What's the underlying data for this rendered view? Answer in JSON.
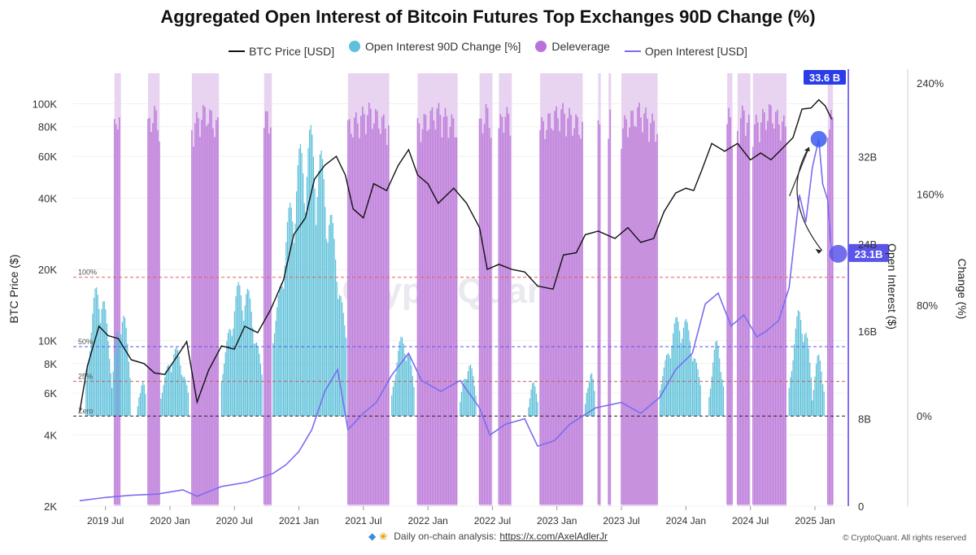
{
  "chart_data": {
    "type": "line",
    "title": "Aggregated Open Interest of Bitcoin Futures Top Exchanges 90D Change (%)",
    "watermark": "CryptoQuant",
    "legend_placement": "top-center",
    "legend": [
      {
        "label": "BTC Price [USD]",
        "kind": "line",
        "color": "#111111"
      },
      {
        "label": "Open Interest 90D Change [%]",
        "kind": "dot",
        "color": "#5ec0da"
      },
      {
        "label": "Deleverage",
        "kind": "dot",
        "color": "#b872d8"
      },
      {
        "label": "Open Interest [USD]",
        "kind": "line",
        "color": "#7b6cf0"
      }
    ],
    "y_left": {
      "label": "BTC Price ($)",
      "scale": "log",
      "range": [
        2000,
        140000
      ],
      "ticks": [
        "100K",
        "80K",
        "60K",
        "40K",
        "20K",
        "10K",
        "8K",
        "6K",
        "4K",
        "2K"
      ]
    },
    "y_oi": {
      "label": "Open Interest ($)",
      "range": [
        0,
        40
      ],
      "ticks": [
        "32B",
        "24B",
        "16B",
        "8B",
        "0"
      ]
    },
    "y_right": {
      "label": "Change (%)",
      "range": [
        -65,
        250
      ],
      "ticks": [
        "240%",
        "160%",
        "80%",
        "0%"
      ]
    },
    "x_ticks": [
      "2019 Jul",
      "2020 Jan",
      "2020 Jul",
      "2021 Jan",
      "2021 Jul",
      "2022 Jan",
      "2022 Jul",
      "2023 Jan",
      "2023 Jul",
      "2024 Jan",
      "2024 Jul",
      "2025 Jan"
    ],
    "reference_lines": [
      {
        "label": "100%",
        "value": 100,
        "color": "#e06060"
      },
      {
        "label": "50%",
        "value": 50,
        "color": "#5a5ae0"
      },
      {
        "label": "25%",
        "value": 25,
        "color": "#c06060"
      },
      {
        "label": "Zero",
        "value": 0,
        "color": "#222222"
      }
    ],
    "btc_price": {
      "name": "BTC Price [USD]",
      "points": [
        [
          2019.3,
          5000
        ],
        [
          2019.36,
          7800
        ],
        [
          2019.45,
          11500
        ],
        [
          2019.52,
          10500
        ],
        [
          2019.6,
          10200
        ],
        [
          2019.7,
          8300
        ],
        [
          2019.8,
          8000
        ],
        [
          2019.88,
          7300
        ],
        [
          2019.96,
          7200
        ],
        [
          2020.05,
          8500
        ],
        [
          2020.13,
          9900
        ],
        [
          2020.21,
          5500
        ],
        [
          2020.3,
          7500
        ],
        [
          2020.4,
          9500
        ],
        [
          2020.5,
          9200
        ],
        [
          2020.58,
          11500
        ],
        [
          2020.68,
          10800
        ],
        [
          2020.78,
          13500
        ],
        [
          2020.88,
          18000
        ],
        [
          2020.96,
          28000
        ],
        [
          2021.05,
          33000
        ],
        [
          2021.12,
          48000
        ],
        [
          2021.2,
          55000
        ],
        [
          2021.29,
          60000
        ],
        [
          2021.36,
          50000
        ],
        [
          2021.42,
          36000
        ],
        [
          2021.5,
          33000
        ],
        [
          2021.58,
          46000
        ],
        [
          2021.68,
          43000
        ],
        [
          2021.77,
          55000
        ],
        [
          2021.85,
          64000
        ],
        [
          2021.92,
          50000
        ],
        [
          2022.0,
          46000
        ],
        [
          2022.08,
          38000
        ],
        [
          2022.2,
          44000
        ],
        [
          2022.3,
          38000
        ],
        [
          2022.4,
          30000
        ],
        [
          2022.46,
          20000
        ],
        [
          2022.55,
          21000
        ],
        [
          2022.65,
          20000
        ],
        [
          2022.75,
          19500
        ],
        [
          2022.85,
          17000
        ],
        [
          2022.97,
          16500
        ],
        [
          2023.05,
          23000
        ],
        [
          2023.15,
          23500
        ],
        [
          2023.22,
          28000
        ],
        [
          2023.32,
          29000
        ],
        [
          2023.45,
          27000
        ],
        [
          2023.55,
          30000
        ],
        [
          2023.65,
          26000
        ],
        [
          2023.75,
          27000
        ],
        [
          2023.83,
          35000
        ],
        [
          2023.92,
          42000
        ],
        [
          2024.0,
          44000
        ],
        [
          2024.06,
          43000
        ],
        [
          2024.12,
          52000
        ],
        [
          2024.2,
          68000
        ],
        [
          2024.3,
          63000
        ],
        [
          2024.4,
          68000
        ],
        [
          2024.5,
          58000
        ],
        [
          2024.58,
          62000
        ],
        [
          2024.66,
          58000
        ],
        [
          2024.75,
          65000
        ],
        [
          2024.83,
          72000
        ],
        [
          2024.9,
          95000
        ],
        [
          2024.97,
          96000
        ],
        [
          2025.03,
          104000
        ],
        [
          2025.08,
          98000
        ],
        [
          2025.13,
          86000
        ]
      ]
    },
    "open_interest": {
      "name": "Open Interest [USD]",
      "points": [
        [
          2019.3,
          0.5
        ],
        [
          2019.5,
          0.8
        ],
        [
          2019.7,
          1.0
        ],
        [
          2019.9,
          1.1
        ],
        [
          2020.1,
          1.5
        ],
        [
          2020.21,
          0.9
        ],
        [
          2020.4,
          1.8
        ],
        [
          2020.6,
          2.2
        ],
        [
          2020.8,
          3.0
        ],
        [
          2020.9,
          3.8
        ],
        [
          2021.0,
          5.0
        ],
        [
          2021.1,
          7.0
        ],
        [
          2021.2,
          10.5
        ],
        [
          2021.3,
          12.5
        ],
        [
          2021.38,
          7.0
        ],
        [
          2021.5,
          8.5
        ],
        [
          2021.6,
          9.5
        ],
        [
          2021.72,
          12.0
        ],
        [
          2021.85,
          14.0
        ],
        [
          2021.95,
          11.5
        ],
        [
          2022.1,
          10.5
        ],
        [
          2022.25,
          11.5
        ],
        [
          2022.4,
          9.0
        ],
        [
          2022.48,
          6.5
        ],
        [
          2022.6,
          7.5
        ],
        [
          2022.75,
          8.0
        ],
        [
          2022.85,
          5.5
        ],
        [
          2022.98,
          6.0
        ],
        [
          2023.1,
          7.5
        ],
        [
          2023.3,
          9.0
        ],
        [
          2023.5,
          9.5
        ],
        [
          2023.65,
          8.5
        ],
        [
          2023.8,
          10.0
        ],
        [
          2023.92,
          12.5
        ],
        [
          2024.05,
          14.0
        ],
        [
          2024.15,
          18.5
        ],
        [
          2024.25,
          19.5
        ],
        [
          2024.35,
          16.5
        ],
        [
          2024.45,
          17.5
        ],
        [
          2024.55,
          15.5
        ],
        [
          2024.62,
          16.0
        ],
        [
          2024.72,
          17.0
        ],
        [
          2024.8,
          20.0
        ],
        [
          2024.88,
          28.5
        ],
        [
          2024.93,
          26.0
        ],
        [
          2024.98,
          31.0
        ],
        [
          2025.03,
          33.6
        ],
        [
          2025.06,
          29.5
        ],
        [
          2025.1,
          28.0
        ],
        [
          2025.13,
          23.1
        ]
      ]
    },
    "oi_90d_change": {
      "name": "Open Interest 90D Change [%]",
      "segments": [
        {
          "from": 2019.35,
          "to": 2019.55,
          "peak": 100
        },
        {
          "from": 2019.55,
          "to": 2019.7,
          "peak": 80
        },
        {
          "from": 2019.75,
          "to": 2019.82,
          "peak": 28
        },
        {
          "from": 2019.93,
          "to": 2020.15,
          "peak": 50
        },
        {
          "from": 2020.4,
          "to": 2020.72,
          "peak": 100
        },
        {
          "from": 2020.8,
          "to": 2021.37,
          "peak": 210
        },
        {
          "from": 2021.72,
          "to": 2021.9,
          "peak": 60
        },
        {
          "from": 2022.25,
          "to": 2022.38,
          "peak": 40
        },
        {
          "from": 2022.78,
          "to": 2022.86,
          "peak": 25
        },
        {
          "from": 2023.22,
          "to": 2023.3,
          "peak": 35
        },
        {
          "from": 2023.8,
          "to": 2024.12,
          "peak": 75
        },
        {
          "from": 2024.18,
          "to": 2024.3,
          "peak": 55
        },
        {
          "from": 2024.8,
          "to": 2024.98,
          "peak": 80
        },
        {
          "from": 2024.98,
          "to": 2025.08,
          "peak": 45
        }
      ]
    },
    "deleverage": {
      "name": "Deleverage",
      "segments": [
        {
          "from": 2019.57,
          "to": 2019.62
        },
        {
          "from": 2019.83,
          "to": 2019.92
        },
        {
          "from": 2020.17,
          "to": 2020.38
        },
        {
          "from": 2020.73,
          "to": 2020.79
        },
        {
          "from": 2021.38,
          "to": 2021.7
        },
        {
          "from": 2021.92,
          "to": 2022.23
        },
        {
          "from": 2022.4,
          "to": 2022.5
        },
        {
          "from": 2022.55,
          "to": 2022.65
        },
        {
          "from": 2022.87,
          "to": 2023.2
        },
        {
          "from": 2023.32,
          "to": 2023.34
        },
        {
          "from": 2023.4,
          "to": 2023.42
        },
        {
          "from": 2023.5,
          "to": 2023.78
        },
        {
          "from": 2024.32,
          "to": 2024.36
        },
        {
          "from": 2024.4,
          "to": 2024.5
        },
        {
          "from": 2024.52,
          "to": 2024.78
        },
        {
          "from": 2025.1,
          "to": 2025.14
        }
      ]
    },
    "annotations": [
      {
        "label": "33.6 B",
        "x": 2025.03,
        "y": 33.6,
        "color": "#2a3de8"
      },
      {
        "label": "23.1B",
        "x": 2025.13,
        "y": 23.1,
        "color": "#5a55e8"
      }
    ]
  },
  "footer": {
    "icons": [
      "gem-icon",
      "raised-hands-icon"
    ],
    "note": "Daily on-chain analysis:",
    "link": "https://x.com/AxelAdlerJr",
    "copyright": "© CryptoQuant. All rights reserved"
  }
}
